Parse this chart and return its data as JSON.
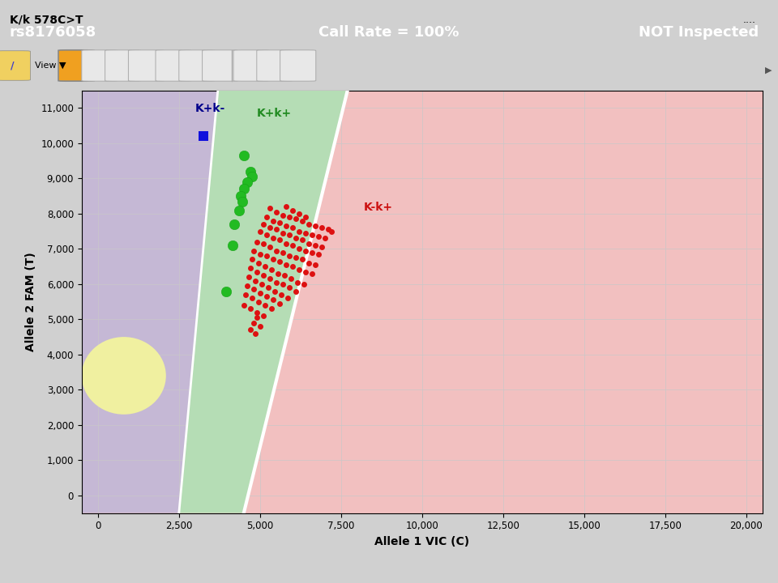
{
  "title_bar_text": "rs8176058",
  "call_rate_text": "Call Rate = 100%",
  "not_inspected_text": "NOT Inspected",
  "supertitle": "K/k 578C>T",
  "xlabel": "Allele 1 VIC (C)",
  "ylabel": "Allele 2 FAM (T)",
  "xlim": [
    -500,
    20500
  ],
  "ylim": [
    -500,
    11500
  ],
  "xticks": [
    0,
    2500,
    5000,
    7500,
    10000,
    12500,
    15000,
    17500,
    20000
  ],
  "yticks": [
    0,
    1000,
    2000,
    3000,
    4000,
    5000,
    6000,
    7000,
    8000,
    9000,
    10000,
    11000
  ],
  "header_color": "#5a7faa",
  "header_text_color": "#ffffff",
  "plot_bg_color": "#ffffff",
  "region_pink_color": "#f2c0c0",
  "region_purple_color": "#c5b8d5",
  "region_green_color": "#b5ddb5",
  "region_yellow_color": "#f0f0a0",
  "label_Kkplus": "K+k-",
  "label_Kkplus_color": "#00008b",
  "label_KkHet": "K+k+",
  "label_KkHet_color": "#228B22",
  "label_Kkminus": "K-k+",
  "label_Kkminus_color": "#cc1111",
  "blue_square_x": 3250,
  "blue_square_y": 10200,
  "green_dots": [
    [
      4500,
      9650
    ],
    [
      4700,
      9200
    ],
    [
      4750,
      9050
    ],
    [
      4600,
      8900
    ],
    [
      4500,
      8700
    ],
    [
      4400,
      8500
    ],
    [
      4450,
      8350
    ],
    [
      4350,
      8100
    ],
    [
      4200,
      7700
    ],
    [
      4150,
      7100
    ],
    [
      3950,
      5800
    ]
  ],
  "red_dots": [
    [
      5300,
      8150
    ],
    [
      5500,
      8050
    ],
    [
      5700,
      7950
    ],
    [
      5900,
      7900
    ],
    [
      6100,
      7850
    ],
    [
      6300,
      7800
    ],
    [
      6500,
      7700
    ],
    [
      6700,
      7650
    ],
    [
      6900,
      7600
    ],
    [
      7100,
      7550
    ],
    [
      7200,
      7500
    ],
    [
      5200,
      7900
    ],
    [
      5400,
      7800
    ],
    [
      5600,
      7750
    ],
    [
      5800,
      7650
    ],
    [
      6000,
      7600
    ],
    [
      6200,
      7500
    ],
    [
      6400,
      7450
    ],
    [
      6600,
      7400
    ],
    [
      6800,
      7350
    ],
    [
      7000,
      7300
    ],
    [
      5100,
      7700
    ],
    [
      5300,
      7600
    ],
    [
      5500,
      7550
    ],
    [
      5700,
      7450
    ],
    [
      5900,
      7400
    ],
    [
      6100,
      7300
    ],
    [
      6300,
      7250
    ],
    [
      6500,
      7150
    ],
    [
      6700,
      7100
    ],
    [
      6900,
      7050
    ],
    [
      5000,
      7500
    ],
    [
      5200,
      7400
    ],
    [
      5400,
      7300
    ],
    [
      5600,
      7250
    ],
    [
      5800,
      7150
    ],
    [
      6000,
      7100
    ],
    [
      6200,
      7000
    ],
    [
      6400,
      6950
    ],
    [
      6600,
      6900
    ],
    [
      6800,
      6850
    ],
    [
      4900,
      7200
    ],
    [
      5100,
      7150
    ],
    [
      5300,
      7050
    ],
    [
      5500,
      6950
    ],
    [
      5700,
      6900
    ],
    [
      5900,
      6800
    ],
    [
      6100,
      6750
    ],
    [
      6300,
      6700
    ],
    [
      6500,
      6600
    ],
    [
      6700,
      6550
    ],
    [
      4800,
      6950
    ],
    [
      5000,
      6850
    ],
    [
      5200,
      6800
    ],
    [
      5400,
      6700
    ],
    [
      5600,
      6650
    ],
    [
      5800,
      6550
    ],
    [
      6000,
      6500
    ],
    [
      6200,
      6400
    ],
    [
      6400,
      6350
    ],
    [
      6600,
      6300
    ],
    [
      4750,
      6700
    ],
    [
      4950,
      6600
    ],
    [
      5150,
      6500
    ],
    [
      5350,
      6400
    ],
    [
      5550,
      6300
    ],
    [
      5750,
      6250
    ],
    [
      5950,
      6150
    ],
    [
      6150,
      6050
    ],
    [
      6350,
      6000
    ],
    [
      4700,
      6450
    ],
    [
      4900,
      6350
    ],
    [
      5100,
      6250
    ],
    [
      5300,
      6150
    ],
    [
      5500,
      6050
    ],
    [
      5700,
      6000
    ],
    [
      5900,
      5900
    ],
    [
      6100,
      5800
    ],
    [
      4650,
      6200
    ],
    [
      4850,
      6100
    ],
    [
      5050,
      6000
    ],
    [
      5250,
      5900
    ],
    [
      5450,
      5800
    ],
    [
      5650,
      5700
    ],
    [
      5850,
      5600
    ],
    [
      4600,
      5950
    ],
    [
      4800,
      5850
    ],
    [
      5000,
      5750
    ],
    [
      5200,
      5650
    ],
    [
      5400,
      5550
    ],
    [
      5600,
      5450
    ],
    [
      4550,
      5700
    ],
    [
      4750,
      5600
    ],
    [
      4950,
      5500
    ],
    [
      5150,
      5400
    ],
    [
      5350,
      5300
    ],
    [
      4500,
      5400
    ],
    [
      4700,
      5300
    ],
    [
      4900,
      5200
    ],
    [
      5100,
      5100
    ],
    [
      4800,
      4900
    ],
    [
      5000,
      4800
    ],
    [
      4900,
      5050
    ],
    [
      4700,
      4700
    ],
    [
      4850,
      4600
    ],
    [
      5800,
      8200
    ],
    [
      6000,
      8100
    ],
    [
      6200,
      8000
    ],
    [
      6400,
      7900
    ]
  ]
}
